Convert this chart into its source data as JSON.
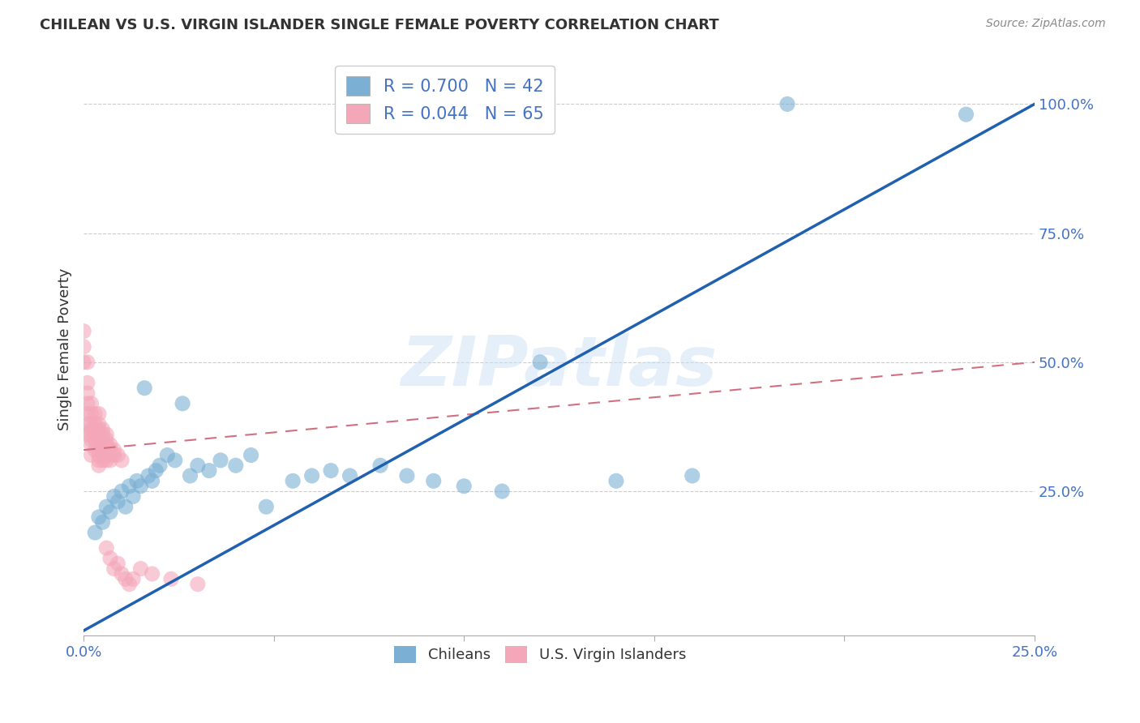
{
  "title": "CHILEAN VS U.S. VIRGIN ISLANDER SINGLE FEMALE POVERTY CORRELATION CHART",
  "source": "Source: ZipAtlas.com",
  "ylabel": "Single Female Poverty",
  "watermark": "ZIPatlas",
  "background_color": "#ffffff",
  "chilean_color": "#7bafd4",
  "vi_color": "#f4a7b9",
  "chilean_R": 0.7,
  "chilean_N": 42,
  "vi_R": 0.044,
  "vi_N": 65,
  "xlim": [
    0.0,
    0.25
  ],
  "ylim": [
    -0.03,
    1.08
  ],
  "chilean_x": [
    0.003,
    0.004,
    0.005,
    0.006,
    0.007,
    0.008,
    0.009,
    0.01,
    0.011,
    0.012,
    0.013,
    0.014,
    0.015,
    0.016,
    0.017,
    0.018,
    0.019,
    0.02,
    0.022,
    0.024,
    0.026,
    0.028,
    0.03,
    0.033,
    0.036,
    0.04,
    0.044,
    0.048,
    0.055,
    0.06,
    0.065,
    0.07,
    0.078,
    0.085,
    0.092,
    0.1,
    0.11,
    0.12,
    0.14,
    0.16,
    0.185,
    0.232
  ],
  "chilean_y": [
    0.17,
    0.2,
    0.19,
    0.22,
    0.21,
    0.24,
    0.23,
    0.25,
    0.22,
    0.26,
    0.24,
    0.27,
    0.26,
    0.45,
    0.28,
    0.27,
    0.29,
    0.3,
    0.32,
    0.31,
    0.42,
    0.28,
    0.3,
    0.29,
    0.31,
    0.3,
    0.32,
    0.22,
    0.27,
    0.28,
    0.29,
    0.28,
    0.3,
    0.28,
    0.27,
    0.26,
    0.25,
    0.5,
    0.27,
    0.28,
    1.0,
    0.98
  ],
  "vi_x": [
    0.0,
    0.0,
    0.0,
    0.001,
    0.001,
    0.001,
    0.001,
    0.001,
    0.001,
    0.001,
    0.002,
    0.002,
    0.002,
    0.002,
    0.002,
    0.002,
    0.002,
    0.002,
    0.003,
    0.003,
    0.003,
    0.003,
    0.003,
    0.003,
    0.004,
    0.004,
    0.004,
    0.004,
    0.004,
    0.004,
    0.004,
    0.004,
    0.004,
    0.004,
    0.005,
    0.005,
    0.005,
    0.005,
    0.005,
    0.005,
    0.006,
    0.006,
    0.006,
    0.006,
    0.006,
    0.006,
    0.007,
    0.007,
    0.007,
    0.007,
    0.007,
    0.008,
    0.008,
    0.008,
    0.009,
    0.009,
    0.01,
    0.01,
    0.011,
    0.012,
    0.013,
    0.015,
    0.018,
    0.023,
    0.03
  ],
  "vi_y": [
    0.56,
    0.53,
    0.5,
    0.5,
    0.46,
    0.44,
    0.42,
    0.4,
    0.38,
    0.36,
    0.42,
    0.4,
    0.38,
    0.37,
    0.36,
    0.35,
    0.34,
    0.32,
    0.4,
    0.38,
    0.37,
    0.36,
    0.35,
    0.33,
    0.4,
    0.38,
    0.37,
    0.36,
    0.35,
    0.34,
    0.33,
    0.32,
    0.31,
    0.3,
    0.37,
    0.36,
    0.35,
    0.33,
    0.32,
    0.31,
    0.36,
    0.35,
    0.34,
    0.32,
    0.31,
    0.14,
    0.34,
    0.33,
    0.32,
    0.31,
    0.12,
    0.33,
    0.32,
    0.1,
    0.32,
    0.11,
    0.31,
    0.09,
    0.08,
    0.07,
    0.08,
    0.1,
    0.09,
    0.08,
    0.07
  ],
  "blue_line_x": [
    0.0,
    0.25
  ],
  "blue_line_y": [
    -0.02,
    1.0
  ],
  "pink_line_x": [
    0.0,
    0.25
  ],
  "pink_line_y": [
    0.33,
    0.5
  ]
}
